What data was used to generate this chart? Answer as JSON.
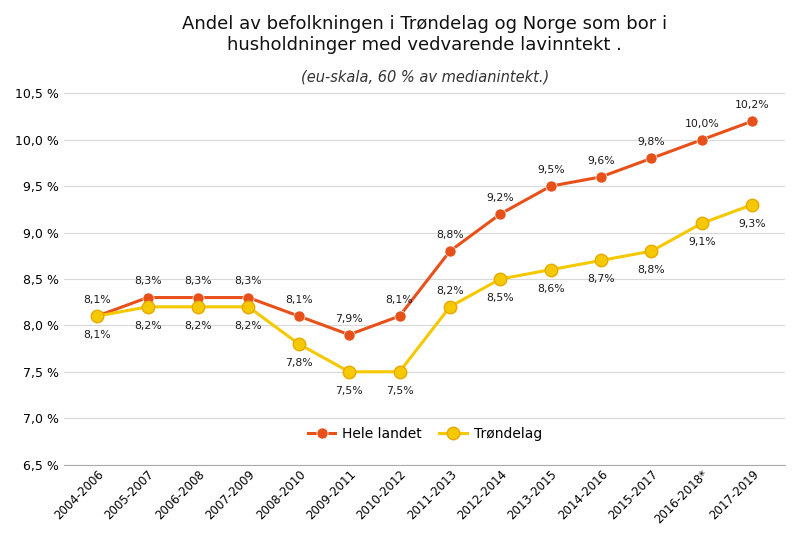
{
  "categories": [
    "2004-2006",
    "2005-2007",
    "2006-2008",
    "2007-2009",
    "2008-2010",
    "2009-2011",
    "2010-2012",
    "2011-2013",
    "2012-2014",
    "2013-2015",
    "2014-2016",
    "2015-2017",
    "2016-2018*",
    "2017-2019"
  ],
  "hele_landet": [
    8.1,
    8.3,
    8.3,
    8.3,
    8.1,
    7.9,
    8.1,
    8.8,
    9.2,
    9.5,
    9.6,
    9.8,
    10.0,
    10.2
  ],
  "trondelag": [
    8.1,
    8.2,
    8.2,
    8.2,
    7.8,
    7.5,
    7.5,
    8.2,
    8.5,
    8.6,
    8.7,
    8.8,
    9.1,
    9.3
  ],
  "hele_landet_color": "#E8501A",
  "trondelag_color": "#F5C800",
  "trondelag_edge_color": "#E8AA00",
  "ann_color": "#1A1A1A",
  "title_line1": "Andel av befolkningen i Trøndelag og Norge som bor i",
  "title_line2": "husholdninger med vedvarende lavinntekt .",
  "subtitle": "(eu-skala, 60 % av medianintekt.)",
  "legend_hele": "Hele landet",
  "legend_trondelag": "Trøndelag",
  "ylim_min": 6.5,
  "ylim_max": 10.55,
  "yticks": [
    6.5,
    7.0,
    7.5,
    8.0,
    8.5,
    9.0,
    9.5,
    10.0,
    10.5
  ],
  "bg_color": "#FFFFFF",
  "grid_color": "#D8D8D8",
  "hele_ann_dy": [
    8,
    8,
    8,
    8,
    8,
    8,
    8,
    8,
    8,
    8,
    8,
    8,
    8,
    8
  ],
  "tron_ann_dy": [
    -12,
    -12,
    -12,
    -12,
    -12,
    -12,
    -12,
    -12,
    -12,
    -12,
    -12,
    -12,
    -12,
    -12
  ]
}
